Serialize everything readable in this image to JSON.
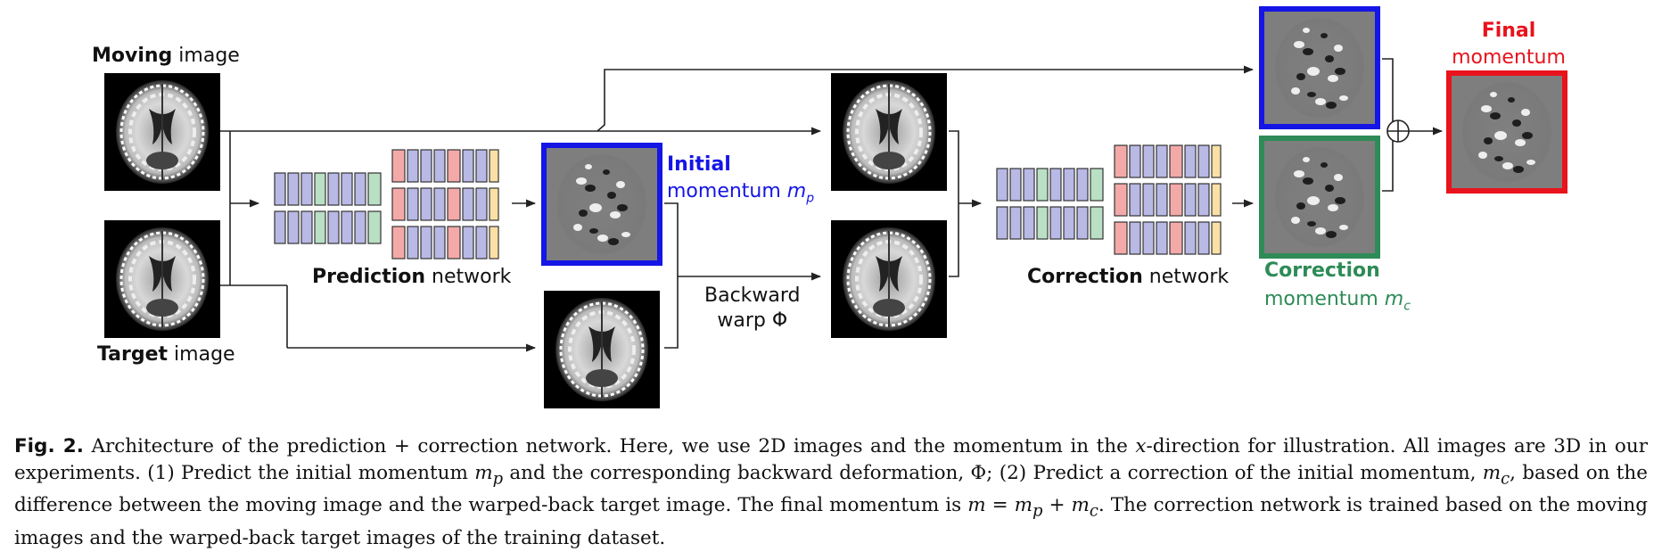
{
  "figure": {
    "labels": {
      "moving": {
        "bold": "Moving",
        "rest": " image"
      },
      "target": {
        "bold": "Target",
        "rest": " image"
      },
      "prediction": {
        "bold": "Prediction",
        "rest": " network"
      },
      "correction_net": {
        "bold": "Correction",
        "rest": " network"
      },
      "initial": {
        "line1": "Initial",
        "line2": "momentum ",
        "sym": "m",
        "sub": "p"
      },
      "correction_mom": {
        "line1": "Correction",
        "line2": "momentum ",
        "sym": "m",
        "sub": "c"
      },
      "final": {
        "line1": "Final",
        "line2": "momentum"
      },
      "warp": {
        "line1": "Backward",
        "line2": "warp Φ"
      },
      "plus": "⊕"
    },
    "colors": {
      "initial_blue": "#1515e6",
      "correction_green": "#2e8b57",
      "final_red": "#e8131c",
      "block_purple": "#b9b9e6",
      "block_green": "#b9dfc4",
      "block_pink": "#f4a9a9",
      "block_yellow": "#fbe0a6"
    }
  },
  "caption": {
    "fig": "Fig. 2.",
    "seg1": " Architecture of the prediction + correction network. Here, we use 2D images and the momentum in the ",
    "x": "x",
    "seg2": "-direction for illustration. All images are 3D in our experiments. (1) Predict the initial momentum ",
    "mp_m": "m",
    "mp_sub": "p",
    "seg3": " and the corresponding backward deformation, Φ; (2) Predict a correction of the initial momentum, ",
    "mc_m": "m",
    "mc_sub": "c",
    "seg4": ", based on the difference between the moving image and the warped-back target image. The final momentum is ",
    "eq_m": "m",
    "eq_mid": " = ",
    "eq_mp": "m",
    "eq_mp_sub": "p",
    "eq_plus": " + ",
    "eq_mc": "m",
    "eq_mc_sub": "c",
    "seg5": ". The correction network is trained based on the moving images and the warped-back target images of the training dataset."
  }
}
